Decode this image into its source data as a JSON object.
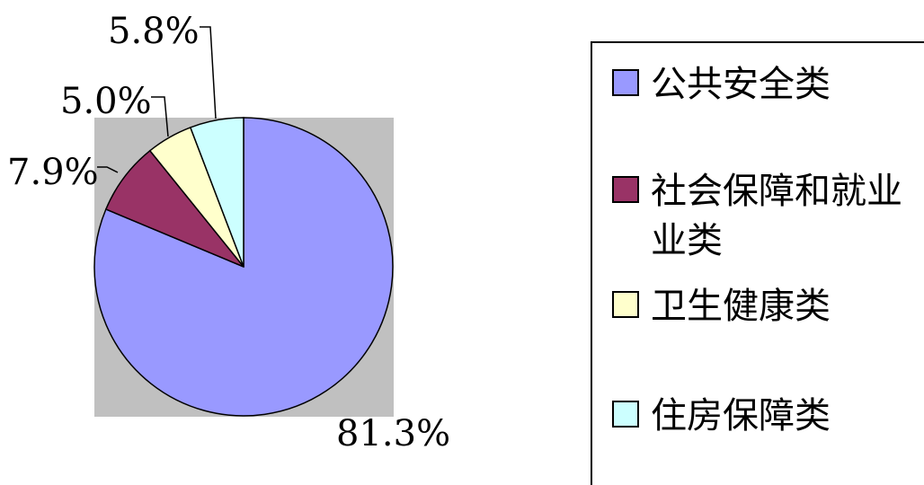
{
  "chart_data": {
    "type": "pie",
    "categories": [
      "公共安全类",
      "社会保障和就业类",
      "卫生健康类",
      "住房保障类"
    ],
    "values": [
      81.3,
      7.9,
      5.0,
      5.8
    ],
    "data_labels": [
      "81.3%",
      "7.9%",
      "5.0%",
      "5.8%"
    ],
    "colors": [
      "#9999ff",
      "#993366",
      "#ffffcc",
      "#ccffff"
    ],
    "legend_lines": [
      [
        "公共安全类"
      ],
      [
        "社会保障和就业",
        "业类"
      ],
      [
        "卫生健康类"
      ],
      [
        "住房保障类"
      ]
    ],
    "legend_placement": "right",
    "plot_background": "#c0c0c0"
  }
}
